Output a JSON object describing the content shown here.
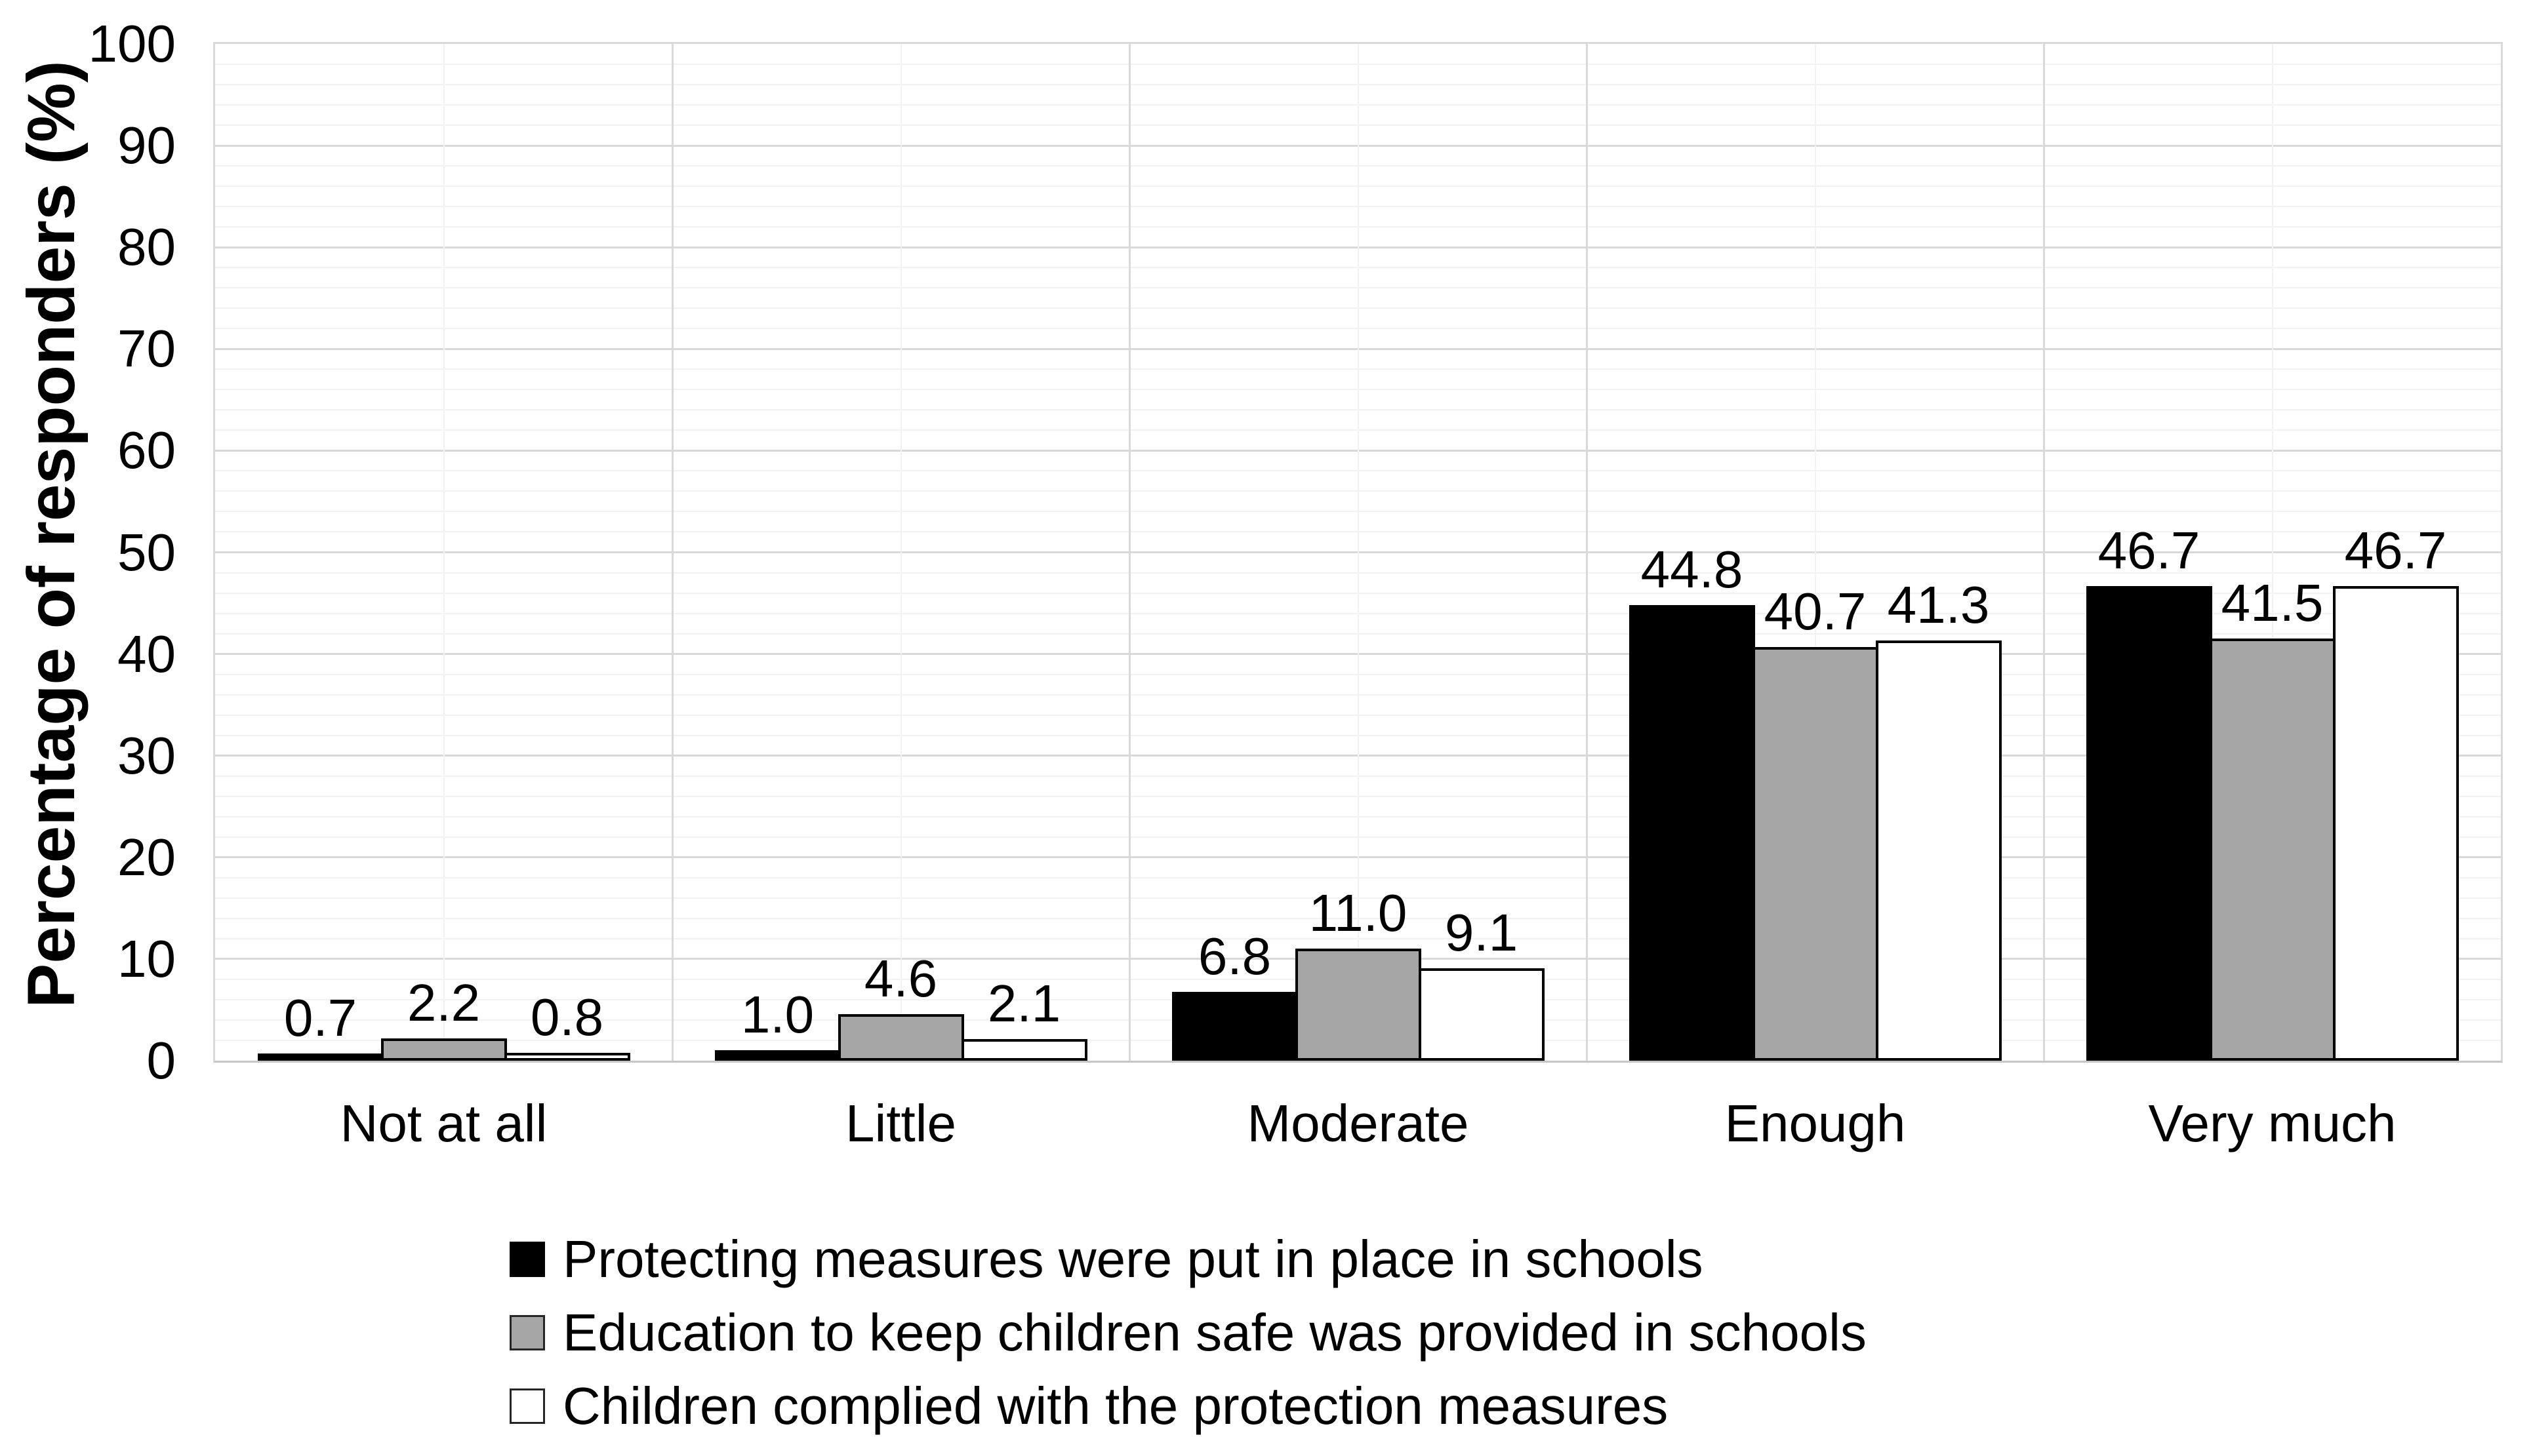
{
  "figure": {
    "background": "#FFFFFF",
    "text_color": "#000000"
  },
  "chart_data": {
    "type": "bar",
    "title": "",
    "xlabel": "",
    "ylabel": "Percentage of responders (%)",
    "ylim": [
      0,
      100
    ],
    "y_ticks": [
      0,
      10,
      20,
      30,
      40,
      50,
      60,
      70,
      80,
      90,
      100
    ],
    "y_minor_step": 2,
    "grid": {
      "h_major": true,
      "h_minor": true,
      "v_major_at_category_boundaries": true,
      "v_minor_at_category_centers": true,
      "h_major_color": "#D9D9D9",
      "h_minor_color": "#F2F2F2",
      "v_major_color": "#D9D9D9",
      "v_minor_color": "#F2F2F2"
    },
    "categories": [
      "Not at all",
      "Little",
      "Moderate",
      "Enough",
      "Very much"
    ],
    "series": [
      {
        "name": "Protecting measures were put in place in schools",
        "fill": "#000000",
        "border": "#000000",
        "values": [
          0.7,
          1.0,
          6.8,
          44.8,
          46.7
        ],
        "value_labels": [
          "0.7",
          "1.0",
          "6.8",
          "44.8",
          "46.7"
        ]
      },
      {
        "name": "Education to keep children safe was provided in schools",
        "fill": "#A6A6A6",
        "border": "#000000",
        "values": [
          2.2,
          4.6,
          11.0,
          40.7,
          41.5
        ],
        "value_labels": [
          "2.2",
          "4.6",
          "11.0",
          "40.7",
          "41.5"
        ]
      },
      {
        "name": "Children complied with the protection measures",
        "fill": "#FFFFFF",
        "border": "#000000",
        "values": [
          0.8,
          2.1,
          9.1,
          41.3,
          46.7
        ],
        "value_labels": [
          "0.8",
          "2.1",
          "9.1",
          "41.3",
          "46.7"
        ]
      }
    ],
    "legend_position": "bottom-left",
    "value_label_format": "one-decimal"
  }
}
